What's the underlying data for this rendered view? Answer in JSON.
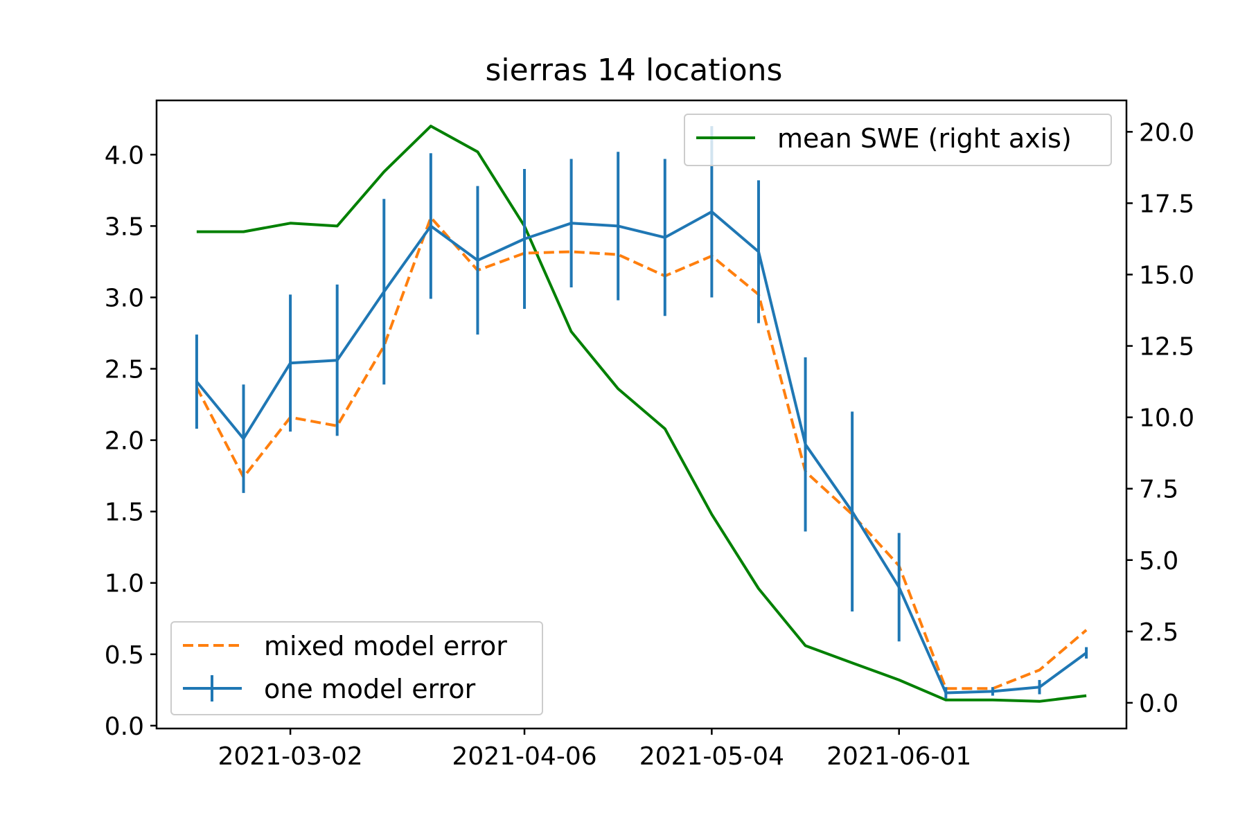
{
  "chart_data": {
    "type": "line",
    "title": "sierras 14 locations",
    "x_tick_labels": [
      "2021-03-02",
      "2021-04-06",
      "2021-05-04",
      "2021-06-01"
    ],
    "x_tick_dates": [
      "2021-03-02",
      "2021-04-06",
      "2021-05-04",
      "2021-06-01"
    ],
    "x_dates": [
      "2021-02-16",
      "2021-02-23",
      "2021-03-02",
      "2021-03-09",
      "2021-03-16",
      "2021-03-23",
      "2021-03-30",
      "2021-04-06",
      "2021-04-13",
      "2021-04-20",
      "2021-04-27",
      "2021-05-04",
      "2021-05-11",
      "2021-05-18",
      "2021-05-25",
      "2021-06-01",
      "2021-06-08",
      "2021-06-15",
      "2021-06-22",
      "2021-06-29"
    ],
    "xlim": [
      "2021-02-10",
      "2021-07-05"
    ],
    "y_left": {
      "ylim": [
        -0.02,
        4.38
      ],
      "ticks": [
        "0.0",
        "0.5",
        "1.0",
        "1.5",
        "2.0",
        "2.5",
        "3.0",
        "3.5",
        "4.0"
      ]
    },
    "y_right": {
      "ylim": [
        -0.9,
        21.1
      ],
      "ticks": [
        "0.0",
        "2.5",
        "5.0",
        "7.5",
        "10.0",
        "12.5",
        "15.0",
        "17.5",
        "20.0"
      ]
    },
    "series": [
      {
        "name": "one model error",
        "axis": "left",
        "style": "solid-with-errorbars",
        "color": "#1f77b4",
        "values": [
          2.41,
          2.01,
          2.54,
          2.56,
          3.04,
          3.5,
          3.26,
          3.41,
          3.52,
          3.5,
          3.42,
          3.6,
          3.32,
          1.97,
          1.5,
          0.97,
          0.23,
          0.24,
          0.27,
          0.51
        ],
        "errors": [
          0.33,
          0.38,
          0.48,
          0.53,
          0.65,
          0.51,
          0.52,
          0.49,
          0.45,
          0.52,
          0.55,
          0.6,
          0.5,
          0.61,
          0.7,
          0.38,
          0.04,
          0.03,
          0.05,
          0.04
        ]
      },
      {
        "name": "mixed model error",
        "axis": "left",
        "style": "dashed",
        "color": "#ff7f0e",
        "values": [
          2.37,
          1.74,
          2.16,
          2.1,
          2.66,
          3.56,
          3.19,
          3.31,
          3.32,
          3.3,
          3.15,
          3.29,
          3.02,
          1.78,
          1.48,
          1.12,
          0.26,
          0.26,
          0.39,
          0.67
        ]
      },
      {
        "name": "mean SWE (right axis)",
        "axis": "right",
        "style": "solid",
        "color": "#008000",
        "values": [
          16.5,
          16.5,
          16.8,
          16.7,
          18.6,
          20.2,
          19.3,
          16.7,
          13.0,
          11.0,
          9.6,
          6.6,
          4.0,
          2.0,
          1.4,
          0.8,
          0.1,
          0.1,
          0.05,
          0.25
        ]
      }
    ],
    "legends": [
      {
        "location": "upper right",
        "entries": [
          "mean SWE (right axis)"
        ]
      },
      {
        "location": "lower left",
        "entries": [
          "mixed model error",
          "one model error"
        ]
      }
    ],
    "grid": false
  }
}
